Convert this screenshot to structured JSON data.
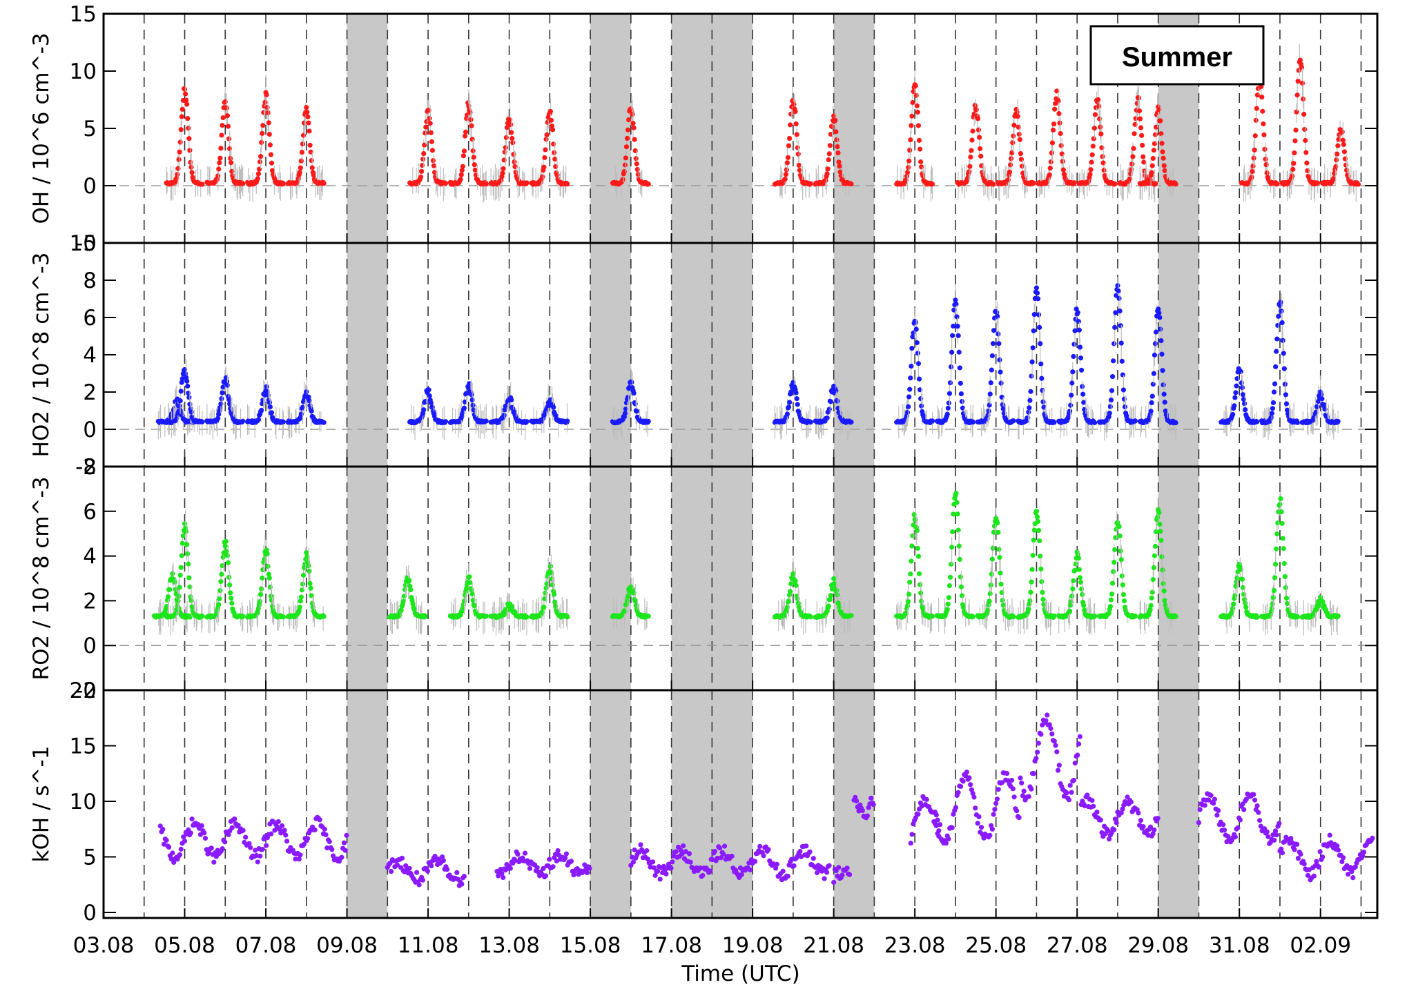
{
  "chart_data": {
    "type": "scatter",
    "season_label": "Summer",
    "xlabel": "Time (UTC)",
    "x_ticks": [
      "03.08",
      "05.08",
      "07.08",
      "09.08",
      "11.08",
      "13.08",
      "15.08",
      "17.08",
      "19.08",
      "21.08",
      "23.08",
      "25.08",
      "27.08",
      "29.08",
      "31.08",
      "02.09"
    ],
    "x_range_days": [
      0,
      31.4
    ],
    "gaps_shaded_days": [
      [
        6.0,
        7.0
      ],
      [
        12.0,
        13.0
      ],
      [
        14.0,
        16.0
      ],
      [
        18.0,
        19.0
      ],
      [
        26.0,
        27.0
      ]
    ],
    "panels": [
      {
        "ylabel": "OH / 10^6 cm^-3",
        "ylim": [
          -5,
          15
        ],
        "yticks": [
          "-5",
          "0",
          "5",
          "10",
          "15"
        ],
        "color": "#ff1a1a",
        "baseline": 0.2,
        "days": [
          {
            "day": 2.0,
            "peak": 8.5
          },
          {
            "day": 3.0,
            "peak": 7.2
          },
          {
            "day": 4.0,
            "peak": 7.8
          },
          {
            "day": 5.0,
            "peak": 6.5
          },
          {
            "day": 8.0,
            "peak": 6.5
          },
          {
            "day": 9.0,
            "peak": 7.0
          },
          {
            "day": 10.0,
            "peak": 6.0
          },
          {
            "day": 11.0,
            "peak": 6.5
          },
          {
            "day": 13.0,
            "peak": 7.0
          },
          {
            "day": 17.0,
            "peak": 7.5
          },
          {
            "day": 18.0,
            "peak": 6.0
          },
          {
            "day": 20.0,
            "peak": 8.8
          },
          {
            "day": 21.5,
            "peak": 7.0
          },
          {
            "day": 22.5,
            "peak": 6.5
          },
          {
            "day": 23.5,
            "peak": 8.0
          },
          {
            "day": 24.5,
            "peak": 7.5
          },
          {
            "day": 25.5,
            "peak": 7.5
          },
          {
            "day": 26.0,
            "peak": 6.5
          },
          {
            "day": 28.5,
            "peak": 9.5
          },
          {
            "day": 29.5,
            "peak": 11.0
          },
          {
            "day": 30.5,
            "peak": 5.0
          }
        ]
      },
      {
        "ylabel": "HO2 / 10^8 cm^-3",
        "ylim": [
          -2,
          10
        ],
        "yticks": [
          "-2",
          "0",
          "2",
          "4",
          "6",
          "8",
          "10"
        ],
        "color": "#1a1aff",
        "baseline": 0.4,
        "days": [
          {
            "day": 1.8,
            "peak": 1.5
          },
          {
            "day": 2.0,
            "peak": 3.2
          },
          {
            "day": 3.0,
            "peak": 2.6
          },
          {
            "day": 4.0,
            "peak": 2.1
          },
          {
            "day": 5.0,
            "peak": 1.8
          },
          {
            "day": 8.0,
            "peak": 2.0
          },
          {
            "day": 9.0,
            "peak": 2.3
          },
          {
            "day": 10.0,
            "peak": 1.7
          },
          {
            "day": 11.0,
            "peak": 1.5
          },
          {
            "day": 13.0,
            "peak": 2.4
          },
          {
            "day": 17.0,
            "peak": 2.4
          },
          {
            "day": 18.0,
            "peak": 2.2
          },
          {
            "day": 20.0,
            "peak": 5.8
          },
          {
            "day": 21.0,
            "peak": 6.8
          },
          {
            "day": 22.0,
            "peak": 6.4
          },
          {
            "day": 23.0,
            "peak": 7.5
          },
          {
            "day": 24.0,
            "peak": 6.4
          },
          {
            "day": 25.0,
            "peak": 7.8
          },
          {
            "day": 26.0,
            "peak": 6.5
          },
          {
            "day": 28.0,
            "peak": 3.2
          },
          {
            "day": 29.0,
            "peak": 6.8
          },
          {
            "day": 30.0,
            "peak": 1.8
          }
        ]
      },
      {
        "ylabel": "RO2 / 10^8 cm^-3",
        "ylim": [
          -2,
          8
        ],
        "yticks": [
          "-2",
          "0",
          "2",
          "4",
          "6",
          "8"
        ],
        "color": "#1ae61a",
        "baseline": 1.3,
        "days": [
          {
            "day": 1.7,
            "peak": 3.2
          },
          {
            "day": 2.0,
            "peak": 5.3
          },
          {
            "day": 3.0,
            "peak": 4.6
          },
          {
            "day": 4.0,
            "peak": 4.2
          },
          {
            "day": 5.0,
            "peak": 4.0
          },
          {
            "day": 7.5,
            "peak": 2.9
          },
          {
            "day": 9.0,
            "peak": 3.0
          },
          {
            "day": 10.0,
            "peak": 1.8
          },
          {
            "day": 11.0,
            "peak": 3.4
          },
          {
            "day": 13.0,
            "peak": 2.6
          },
          {
            "day": 17.0,
            "peak": 3.1
          },
          {
            "day": 18.0,
            "peak": 2.8
          },
          {
            "day": 20.0,
            "peak": 5.8
          },
          {
            "day": 21.0,
            "peak": 6.8
          },
          {
            "day": 22.0,
            "peak": 5.8
          },
          {
            "day": 23.0,
            "peak": 6.0
          },
          {
            "day": 24.0,
            "peak": 4.0
          },
          {
            "day": 25.0,
            "peak": 5.6
          },
          {
            "day": 26.0,
            "peak": 6.0
          },
          {
            "day": 28.0,
            "peak": 3.5
          },
          {
            "day": 29.0,
            "peak": 6.5
          },
          {
            "day": 30.0,
            "peak": 2.0
          }
        ]
      },
      {
        "ylabel": "kOH / s^-1",
        "ylim": [
          -0.5,
          20
        ],
        "yticks": [
          "0",
          "5",
          "10",
          "15",
          "20"
        ],
        "color": "#8a1aff",
        "series_segments": [
          {
            "start": 1.4,
            "end": 6.0,
            "level": 6.5,
            "amp": 1.5
          },
          {
            "start": 7.0,
            "end": 8.9,
            "level": 3.8,
            "amp": 0.8
          },
          {
            "start": 9.7,
            "end": 12.0,
            "level": 4.3,
            "amp": 0.8
          },
          {
            "start": 13.0,
            "end": 17.9,
            "level": 4.5,
            "amp": 1.0
          },
          {
            "start": 18.0,
            "end": 18.4,
            "level": 3.2,
            "amp": 0.5
          },
          {
            "start": 18.5,
            "end": 19.0,
            "level": 10.5,
            "amp": 1.5
          },
          {
            "start": 19.9,
            "end": 20.6,
            "level": 8.0,
            "amp": 2.0
          },
          {
            "start": 20.5,
            "end": 22.6,
            "level": 9.5,
            "amp": 3.0
          },
          {
            "start": 22.6,
            "end": 24.1,
            "level": 14.0,
            "amp": 3.5
          },
          {
            "start": 24.1,
            "end": 26.0,
            "level": 8.5,
            "amp": 1.5
          },
          {
            "start": 27.0,
            "end": 29.0,
            "level": 8.5,
            "amp": 2.0
          },
          {
            "start": 29.0,
            "end": 31.3,
            "level": 5.0,
            "amp": 1.5
          }
        ]
      }
    ]
  }
}
